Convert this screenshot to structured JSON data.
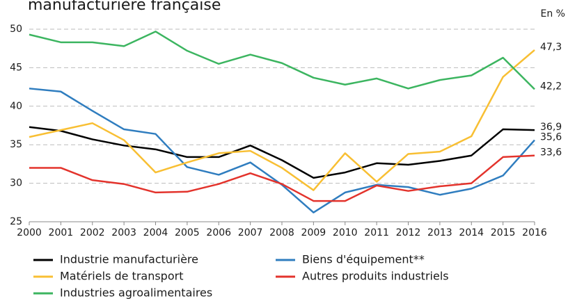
{
  "chart_data": {
    "type": "line",
    "title": "manufacturière française",
    "unit_label": "En %",
    "x": [
      2000,
      2001,
      2002,
      2003,
      2004,
      2005,
      2006,
      2007,
      2008,
      2009,
      2010,
      2011,
      2012,
      2013,
      2014,
      2015,
      2016
    ],
    "xlim": [
      2000,
      2016
    ],
    "xticks": [
      2000,
      2001,
      2002,
      2003,
      2004,
      2005,
      2006,
      2007,
      2008,
      2009,
      2010,
      2011,
      2012,
      2013,
      2014,
      2015,
      2016
    ],
    "ylim": [
      25,
      50
    ],
    "yticks": [
      25,
      30,
      35,
      40,
      45,
      50
    ],
    "grid": true,
    "series": [
      {
        "name": "Industrie manufacturière",
        "color": "#000000",
        "values": [
          37.3,
          36.8,
          35.7,
          34.9,
          34.4,
          33.4,
          33.4,
          34.9,
          33.0,
          30.7,
          31.4,
          32.6,
          32.4,
          32.9,
          33.6,
          37.0,
          36.9
        ],
        "value_labels": [
          null,
          null,
          null,
          null,
          null,
          null,
          null,
          null,
          null,
          null,
          null,
          null,
          null,
          null,
          null,
          null,
          "36,9"
        ]
      },
      {
        "name": "Biens d'équipement**",
        "color": "#2f7dbf",
        "values": [
          42.3,
          41.9,
          39.4,
          37.0,
          36.4,
          32.1,
          31.1,
          32.7,
          29.8,
          26.2,
          28.8,
          29.8,
          29.5,
          28.5,
          29.3,
          31.0,
          35.6
        ],
        "value_labels": [
          null,
          null,
          null,
          null,
          null,
          null,
          null,
          null,
          null,
          null,
          null,
          null,
          null,
          null,
          null,
          null,
          "35,6"
        ]
      },
      {
        "name": "Matériels de transport",
        "color": "#f8bf33",
        "values": [
          36.0,
          36.9,
          37.8,
          35.6,
          31.4,
          32.7,
          33.9,
          34.2,
          32.0,
          29.1,
          33.9,
          30.2,
          33.8,
          34.1,
          36.1,
          43.8,
          47.3
        ],
        "value_labels": [
          null,
          null,
          null,
          null,
          null,
          null,
          null,
          null,
          null,
          null,
          null,
          null,
          null,
          null,
          null,
          null,
          "47,3"
        ]
      },
      {
        "name": "Autres produits industriels",
        "color": "#e3332c",
        "values": [
          32.0,
          32.0,
          30.4,
          29.9,
          28.8,
          28.9,
          29.9,
          31.3,
          29.9,
          27.7,
          27.7,
          29.7,
          29.0,
          29.6,
          30.0,
          33.4,
          33.6
        ],
        "value_labels": [
          null,
          null,
          null,
          null,
          null,
          null,
          null,
          null,
          null,
          null,
          null,
          null,
          null,
          null,
          null,
          null,
          "33,6"
        ]
      },
      {
        "name": "Industries agroalimentaires",
        "color": "#3cb560",
        "values": [
          49.3,
          48.3,
          48.3,
          47.8,
          49.7,
          47.2,
          45.5,
          46.7,
          45.6,
          43.7,
          42.8,
          43.6,
          42.3,
          43.4,
          44.0,
          46.3,
          42.2
        ],
        "value_labels": [
          null,
          null,
          null,
          null,
          null,
          null,
          null,
          null,
          null,
          null,
          null,
          null,
          null,
          null,
          null,
          null,
          "42,2"
        ]
      }
    ]
  }
}
